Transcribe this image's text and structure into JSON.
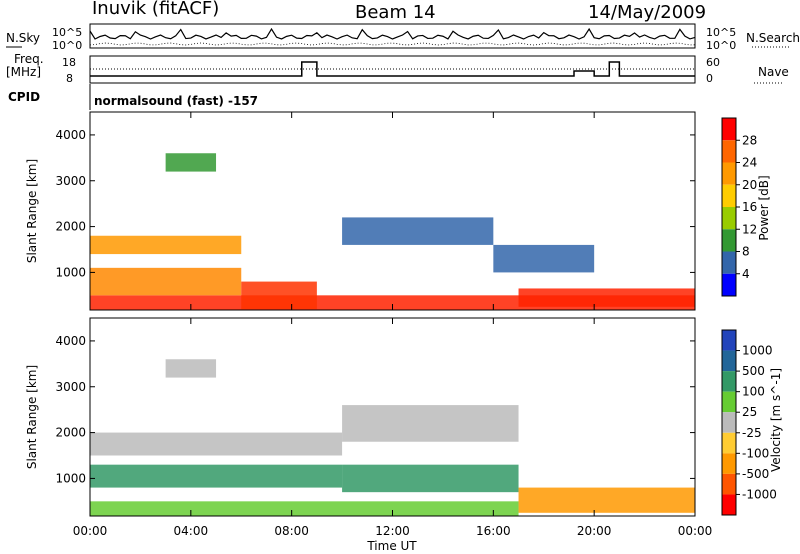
{
  "header": {
    "station": "Inuvik (fitACF)",
    "beam": "Beam 14",
    "date": "14/May/2009"
  },
  "strip": {
    "nsky_label": "N.Sky",
    "nsearch_label": "N.Search",
    "freq_label_1": "Freq.",
    "freq_label_2": "[MHz]",
    "nave_label": "Nave",
    "cpid_label": "CPID",
    "cpid_value": "normalsound (fast) -157",
    "noise_ticks_left": [
      "10^5",
      "10^0"
    ],
    "noise_ticks_right": [
      "10^5",
      "10^0"
    ],
    "freq_ticks": [
      "18",
      "8"
    ],
    "nave_ticks": [
      "60",
      "0"
    ]
  },
  "chart_data": [
    {
      "type": "heatmap",
      "name": "power",
      "ylabel": "Slant Range [km]",
      "xlabel": "",
      "ylim": [
        180,
        4500
      ],
      "yticks": [
        1000,
        2000,
        3000,
        4000
      ],
      "colorbar": {
        "label": "Power [dB]",
        "ticks": [
          "28",
          "24",
          "20",
          "16",
          "12",
          "8",
          "4"
        ],
        "colors": [
          "#ff0000",
          "#ff6600",
          "#ff9900",
          "#ffcc00",
          "#99cc00",
          "#339933",
          "#3366aa",
          "#0000ff"
        ]
      },
      "bands": [
        {
          "x0": 0,
          "x1": 24,
          "y0": 180,
          "y1": 500,
          "color": "#ff2200"
        },
        {
          "x0": 0,
          "x1": 6,
          "y0": 500,
          "y1": 1100,
          "color": "#ff8800"
        },
        {
          "x0": 6,
          "x1": 9,
          "y0": 200,
          "y1": 800,
          "color": "#ff3300"
        },
        {
          "x0": 0,
          "x1": 6,
          "y0": 1400,
          "y1": 1800,
          "color": "#ff9900"
        },
        {
          "x0": 10,
          "x1": 16,
          "y0": 1600,
          "y1": 2200,
          "color": "#3366aa"
        },
        {
          "x0": 16,
          "x1": 20,
          "y0": 1000,
          "y1": 1600,
          "color": "#3366aa"
        },
        {
          "x0": 17,
          "x1": 24,
          "y0": 250,
          "y1": 650,
          "color": "#ff2200"
        },
        {
          "x0": 3,
          "x1": 5,
          "y0": 3200,
          "y1": 3600,
          "color": "#339933"
        }
      ]
    },
    {
      "type": "heatmap",
      "name": "velocity",
      "ylabel": "Slant Range [km]",
      "xlabel": "Time UT",
      "ylim": [
        180,
        4500
      ],
      "yticks": [
        1000,
        2000,
        3000,
        4000
      ],
      "xticks": [
        "00:00",
        "04:00",
        "08:00",
        "12:00",
        "16:00",
        "20:00",
        "00:00"
      ],
      "colorbar": {
        "label": "Velocity [m s^-1]",
        "ticks": [
          "1000",
          "500",
          "100",
          "25",
          "-25",
          "-100",
          "-500",
          "-1000"
        ],
        "colors": [
          "#2244bb",
          "#226699",
          "#339966",
          "#66cc33",
          "#bbbbbb",
          "#ffcc33",
          "#ff9900",
          "#ff5500",
          "#ff0000"
        ]
      },
      "bands": [
        {
          "x0": 0,
          "x1": 10,
          "y0": 1500,
          "y1": 2000,
          "color": "#bbbbbb"
        },
        {
          "x0": 10,
          "x1": 17,
          "y0": 1800,
          "y1": 2600,
          "color": "#bbbbbb"
        },
        {
          "x0": 0,
          "x1": 10,
          "y0": 800,
          "y1": 1300,
          "color": "#339966"
        },
        {
          "x0": 10,
          "x1": 17,
          "y0": 700,
          "y1": 1300,
          "color": "#339966"
        },
        {
          "x0": 17,
          "x1": 24,
          "y0": 250,
          "y1": 800,
          "color": "#ff9900"
        },
        {
          "x0": 0,
          "x1": 17,
          "y0": 180,
          "y1": 500,
          "color": "#66cc33"
        },
        {
          "x0": 3,
          "x1": 5,
          "y0": 3200,
          "y1": 3600,
          "color": "#bbbbbb"
        }
      ]
    }
  ]
}
